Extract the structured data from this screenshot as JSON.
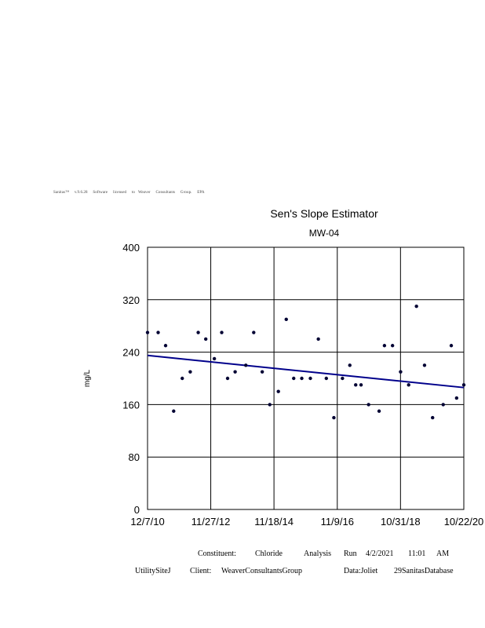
{
  "header": {
    "text": "Sanitas™     v.9.6.28     Software     licensed     to   Weaver     Consultants     Group.     EPA"
  },
  "chart_data": {
    "type": "scatter",
    "title": "Sen's Slope Estimator",
    "subtitle": "MW-04",
    "xlabel": "",
    "ylabel": "mg/L",
    "x_ticks": [
      "12/7/10",
      "11/27/12",
      "11/18/14",
      "11/9/16",
      "10/31/18",
      "10/22/20"
    ],
    "y_ticks": [
      "0",
      "80",
      "160",
      "240",
      "320",
      "400"
    ],
    "ylim": [
      0,
      400
    ],
    "grid": true,
    "point_color": "#000033",
    "trend_color": "#00008b",
    "series": [
      {
        "values_x_fraction_note_removed": null,
        "points": [
          [
            "12/7/10",
            270
          ],
          [
            "4/7/11",
            270
          ],
          [
            "7/1/11",
            250
          ],
          [
            "10/1/11",
            150
          ],
          [
            "1/7/12",
            200
          ],
          [
            "4/7/12",
            210
          ],
          [
            "7/7/12",
            270
          ],
          [
            "10/1/12",
            260
          ],
          [
            "1/7/13",
            230
          ],
          [
            "4/1/13",
            270
          ],
          [
            "6/7/13",
            200
          ],
          [
            "9/1/13",
            210
          ],
          [
            "1/1/14",
            220
          ],
          [
            "4/1/14",
            270
          ],
          [
            "7/7/14",
            210
          ],
          [
            "10/1/14",
            160
          ],
          [
            "1/7/15",
            180
          ],
          [
            "4/7/15",
            290
          ],
          [
            "7/1/15",
            200
          ],
          [
            "10/1/15",
            200
          ],
          [
            "1/7/16",
            200
          ],
          [
            "4/7/16",
            260
          ],
          [
            "7/7/16",
            200
          ],
          [
            "10/1/16",
            140
          ],
          [
            "1/7/17",
            200
          ],
          [
            "4/1/17",
            220
          ],
          [
            "6/7/17",
            190
          ],
          [
            "8/7/17",
            190
          ],
          [
            "11/1/17",
            160
          ],
          [
            "3/1/18",
            150
          ],
          [
            "5/1/18",
            250
          ],
          [
            "8/1/18",
            250
          ],
          [
            "11/1/18",
            210
          ],
          [
            "2/1/19",
            190
          ],
          [
            "5/1/19",
            310
          ],
          [
            "8/1/19",
            220
          ],
          [
            "11/1/19",
            140
          ],
          [
            "3/1/20",
            160
          ],
          [
            "6/1/20",
            250
          ],
          [
            "8/1/20",
            170
          ],
          [
            "10/22/20",
            190
          ]
        ]
      }
    ],
    "trend_line": {
      "start": [
        "12/7/10",
        235
      ],
      "end": [
        "10/22/20",
        186
      ]
    }
  },
  "footer": {
    "constituent_label": "Constituent:",
    "constituent_value": "Chloride",
    "analysis_label": "Analysis",
    "run_label": "Run",
    "run_date": "4/2/2021",
    "run_time": "11:01",
    "run_ampm": "AM",
    "site": "UtilitySiteJ",
    "client_label": "Client:",
    "client_value": "WeaverConsultantsGroup",
    "data_label": "Data:Joliet",
    "database": "29SanitasDatabase"
  }
}
